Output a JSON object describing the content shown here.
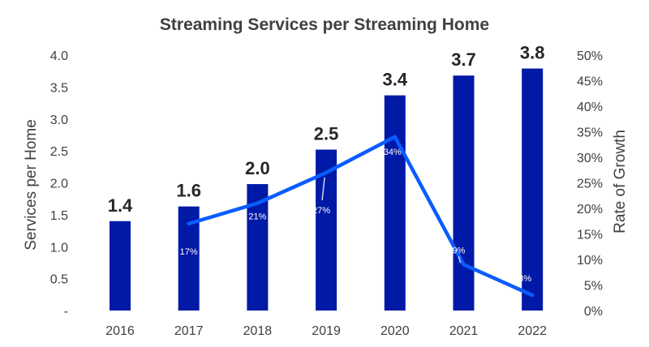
{
  "chart_data": {
    "type": "bar",
    "title": "Streaming Services per Streaming Home",
    "ylabel": "Services per Home",
    "y2label": "Rate of Growth",
    "categories": [
      "2016",
      "2017",
      "2018",
      "2019",
      "2020",
      "2021",
      "2022"
    ],
    "ylim": [
      0,
      4.0
    ],
    "y2lim": [
      0,
      50
    ],
    "y_ticks": [
      0,
      0.5,
      1.0,
      1.5,
      2.0,
      2.5,
      3.0,
      3.5,
      4.0
    ],
    "y_tick_labels": [
      "-",
      "0.5",
      "1.0",
      "1.5",
      "2.0",
      "2.5",
      "3.0",
      "3.5",
      "4.0"
    ],
    "y2_ticks": [
      0,
      5,
      10,
      15,
      20,
      25,
      30,
      35,
      40,
      45,
      50
    ],
    "y2_tick_labels": [
      "0%",
      "5%",
      "10%",
      "15%",
      "20%",
      "25%",
      "30%",
      "35%",
      "40%",
      "45%",
      "50%"
    ],
    "grid": false,
    "legend": "none",
    "series": [
      {
        "type": "bar",
        "axis": "left",
        "color": "#0019A6",
        "values": [
          1.4,
          1.63,
          1.98,
          2.52,
          3.37,
          3.68,
          3.79
        ],
        "labels": [
          "1.4",
          "1.6",
          "2.0",
          "2.5",
          "3.4",
          "3.7",
          "3.8"
        ]
      },
      {
        "type": "line",
        "axis": "right",
        "color": "#0A5CFF",
        "values": [
          null,
          17,
          21,
          27,
          34,
          9,
          3
        ],
        "labels": [
          null,
          "17%",
          "21%",
          "27%",
          "34%",
          "9%",
          "3%"
        ]
      }
    ]
  }
}
